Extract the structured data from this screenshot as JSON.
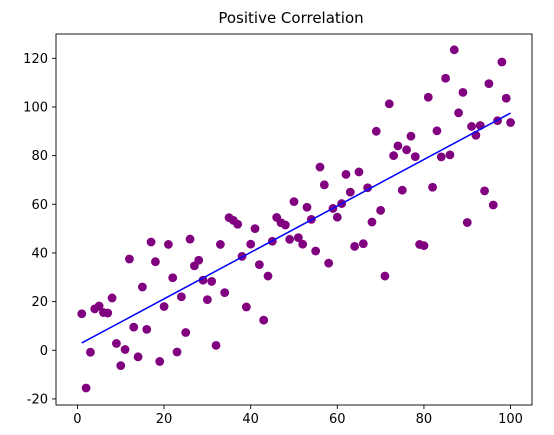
{
  "chart_data": {
    "type": "scatter",
    "title": "Positive Correlation",
    "xlabel": "",
    "ylabel": "",
    "xlim": [
      -4.95,
      104.95
    ],
    "ylim": [
      -22.5,
      130
    ],
    "x_ticks": [
      0,
      20,
      40,
      60,
      80,
      100
    ],
    "y_ticks": [
      -20,
      0,
      20,
      40,
      60,
      80,
      100,
      120
    ],
    "grid": false,
    "legend": "none",
    "colors": {
      "points": "#800080",
      "trend_line": "#0000ff",
      "axes": "#000000"
    },
    "series": [
      {
        "kind": "scatter",
        "points": [
          [
            1,
            15
          ],
          [
            2,
            -15.5
          ],
          [
            3,
            -0.8
          ],
          [
            4,
            17
          ],
          [
            5,
            18.2
          ],
          [
            6,
            15.5
          ],
          [
            7,
            15.3
          ],
          [
            8,
            21.5
          ],
          [
            9,
            2.8
          ],
          [
            10,
            -6.3
          ],
          [
            11,
            0.3
          ],
          [
            12,
            37.5
          ],
          [
            13,
            9.5
          ],
          [
            14,
            -2.7
          ],
          [
            15,
            26
          ],
          [
            16,
            8.6
          ],
          [
            17,
            44.5
          ],
          [
            18,
            36.4
          ],
          [
            19,
            -4.6
          ],
          [
            20,
            18
          ],
          [
            21,
            43.5
          ],
          [
            22,
            29.8
          ],
          [
            23,
            -0.7
          ],
          [
            24,
            22
          ],
          [
            25,
            7.3
          ],
          [
            26,
            45.7
          ],
          [
            27,
            34.7
          ],
          [
            28,
            37
          ],
          [
            29,
            28.8
          ],
          [
            30,
            20.8
          ],
          [
            31,
            28.3
          ],
          [
            32,
            2
          ],
          [
            33,
            43.5
          ],
          [
            34,
            23.7
          ],
          [
            35,
            54.5
          ],
          [
            36,
            53.4
          ],
          [
            37,
            51.8
          ],
          [
            38,
            38.6
          ],
          [
            39,
            17.8
          ],
          [
            40,
            43.6
          ],
          [
            41,
            50
          ],
          [
            42,
            35.2
          ],
          [
            43,
            12.4
          ],
          [
            44,
            30.5
          ],
          [
            45,
            44.8
          ],
          [
            46,
            54.6
          ],
          [
            47,
            52.4
          ],
          [
            48,
            51.5
          ],
          [
            49,
            45.6
          ],
          [
            50,
            61.1
          ],
          [
            51,
            46.3
          ],
          [
            52,
            43.6
          ],
          [
            53,
            58.8
          ],
          [
            54,
            53.8
          ],
          [
            55,
            40.8
          ],
          [
            56,
            75.3
          ],
          [
            57,
            68
          ],
          [
            58,
            35.8
          ],
          [
            59,
            58.3
          ],
          [
            60,
            54.7
          ],
          [
            61,
            60.3
          ],
          [
            62,
            72.3
          ],
          [
            63,
            65
          ],
          [
            64,
            42.7
          ],
          [
            65,
            73.3
          ],
          [
            66,
            43.8
          ],
          [
            67,
            66.8
          ],
          [
            68,
            52.7
          ],
          [
            69,
            90
          ],
          [
            70,
            57.5
          ],
          [
            71,
            30.5
          ],
          [
            72,
            101.3
          ],
          [
            73,
            80
          ],
          [
            74,
            84
          ],
          [
            75,
            65.8
          ],
          [
            76,
            82.4
          ],
          [
            77,
            88
          ],
          [
            78,
            79.6
          ],
          [
            79,
            43.5
          ],
          [
            80,
            43
          ],
          [
            81,
            104
          ],
          [
            82,
            67
          ],
          [
            83,
            90.2
          ],
          [
            84,
            79.5
          ],
          [
            85,
            111.8
          ],
          [
            86,
            80.3
          ],
          [
            87,
            123.5
          ],
          [
            88,
            97.6
          ],
          [
            89,
            106
          ],
          [
            90,
            52.5
          ],
          [
            91,
            92
          ],
          [
            92,
            88.4
          ],
          [
            93,
            92.4
          ],
          [
            94,
            65.5
          ],
          [
            95,
            109.6
          ],
          [
            96,
            59.7
          ],
          [
            97,
            94.4
          ],
          [
            98,
            118.5
          ],
          [
            99,
            103.6
          ],
          [
            100,
            93.6
          ]
        ]
      },
      {
        "kind": "line",
        "x": [
          1,
          100
        ],
        "y": [
          3,
          97.5
        ]
      }
    ]
  }
}
